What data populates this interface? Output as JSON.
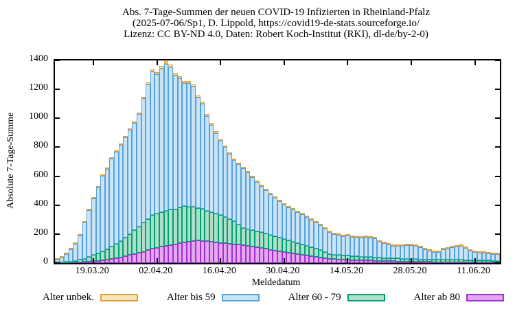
{
  "title": {
    "line1": "Abs. 7-Tage-Summen der neuen COVID-19 Infizierten in Rheinland-Pfalz",
    "line2": "(2025-07-06/Sp1, D. Lippold, https://covid19-de-stats.sourceforge.io/",
    "line3": "Lizenz: CC BY-ND 4.0, Daten: Robert Koch-Institut (RKI), dl-de/by-2-0)"
  },
  "y_axis": {
    "label": "Absolute 7-Tage-Summe",
    "ticks": [
      0,
      200,
      400,
      600,
      800,
      1000,
      1200,
      1400
    ]
  },
  "x_axis": {
    "label": "Meldedatum",
    "tick_labels": [
      "19.03.20",
      "02.04.20",
      "16.04.20",
      "30.04.20",
      "14.05.20",
      "28.05.20",
      "11.06.20"
    ]
  },
  "legend": [
    {
      "label": "Alter unbek.",
      "color": "#E2A13A",
      "fill": "#F8E4BA"
    },
    {
      "label": "Alter bis 59",
      "color": "#56A0DC",
      "fill": "#C9E4F7"
    },
    {
      "label": "Alter 60 - 79",
      "color": "#009E73",
      "fill": "#AEDFC9"
    },
    {
      "label": "Alter ab 80",
      "color": "#A02FD2",
      "fill": "#E3A8F0"
    }
  ],
  "chart_data": {
    "type": "bar",
    "stacked": true,
    "title": "Abs. 7-Tage-Summen der neuen COVID-19 Infizierten in Rheinland-Pfalz",
    "xlabel": "Meldedatum",
    "ylabel": "Absolute 7-Tage-Summe",
    "ylim": [
      0,
      1400
    ],
    "grid": false,
    "legend_position": "bottom",
    "x": [
      "11.03.20",
      "12.03.20",
      "13.03.20",
      "14.03.20",
      "15.03.20",
      "16.03.20",
      "17.03.20",
      "18.03.20",
      "19.03.20",
      "20.03.20",
      "21.03.20",
      "22.03.20",
      "23.03.20",
      "24.03.20",
      "25.03.20",
      "26.03.20",
      "27.03.20",
      "28.03.20",
      "29.03.20",
      "30.03.20",
      "31.03.20",
      "01.04.20",
      "02.04.20",
      "03.04.20",
      "04.04.20",
      "05.04.20",
      "06.04.20",
      "07.04.20",
      "08.04.20",
      "09.04.20",
      "10.04.20",
      "11.04.20",
      "12.04.20",
      "13.04.20",
      "14.04.20",
      "15.04.20",
      "16.04.20",
      "17.04.20",
      "18.04.20",
      "19.04.20",
      "20.04.20",
      "21.04.20",
      "22.04.20",
      "23.04.20",
      "24.04.20",
      "25.04.20",
      "26.04.20",
      "27.04.20",
      "28.04.20",
      "29.04.20",
      "30.04.20",
      "01.05.20",
      "02.05.20",
      "03.05.20",
      "04.05.20",
      "05.05.20",
      "06.05.20",
      "07.05.20",
      "08.05.20",
      "09.05.20",
      "10.05.20",
      "11.05.20",
      "12.05.20",
      "13.05.20",
      "14.05.20",
      "15.05.20",
      "16.05.20",
      "17.05.20",
      "18.05.20",
      "19.05.20",
      "20.05.20",
      "21.05.20",
      "22.05.20",
      "23.05.20",
      "24.05.20",
      "25.05.20",
      "26.05.20",
      "27.05.20",
      "28.05.20",
      "29.05.20",
      "30.05.20",
      "31.05.20",
      "01.06.20",
      "02.06.20",
      "03.06.20",
      "04.06.20",
      "05.06.20",
      "06.06.20",
      "07.06.20",
      "08.06.20",
      "09.06.20",
      "10.06.20",
      "11.06.20",
      "12.06.20",
      "13.06.20",
      "14.06.20",
      "15.06.20",
      "16.06.20"
    ],
    "series": [
      {
        "name": "Alter ab 80",
        "color": "#A02FD2",
        "fill": "#E3A8F0",
        "values": [
          0,
          1,
          1,
          2,
          3,
          5,
          8,
          10,
          12,
          16,
          20,
          25,
          30,
          35,
          40,
          47,
          55,
          62,
          70,
          78,
          88,
          100,
          105,
          112,
          118,
          125,
          130,
          136,
          142,
          148,
          152,
          157,
          153,
          150,
          146,
          142,
          139,
          136,
          132,
          128,
          126,
          124,
          120,
          116,
          110,
          104,
          98,
          92,
          86,
          80,
          75,
          70,
          65,
          60,
          55,
          50,
          46,
          42,
          38,
          33,
          29,
          27,
          25,
          24,
          22,
          21,
          20,
          19,
          18,
          17,
          15,
          14,
          13,
          12,
          12,
          11,
          10,
          10,
          9,
          9,
          8,
          8,
          8,
          7,
          7,
          7,
          7,
          6,
          6,
          6,
          6,
          5,
          5,
          5,
          5,
          4,
          4,
          4
        ]
      },
      {
        "name": "Alter 60 - 79",
        "color": "#009E73",
        "fill": "#AEDFC9",
        "values": [
          3,
          4,
          7,
          9,
          12,
          17,
          22,
          32,
          43,
          50,
          60,
          71,
          82,
          97,
          112,
          129,
          145,
          166,
          182,
          200,
          217,
          233,
          235,
          240,
          242,
          243,
          242,
          249,
          253,
          242,
          236,
          225,
          222,
          212,
          204,
          198,
          191,
          182,
          173,
          162,
          142,
          119,
          115,
          112,
          110,
          108,
          104,
          102,
          99,
          96,
          93,
          88,
          83,
          78,
          73,
          68,
          62,
          56,
          50,
          42,
          33,
          31,
          30,
          28,
          28,
          27,
          26,
          25,
          25,
          24,
          24,
          23,
          22,
          22,
          20,
          20,
          20,
          19,
          19,
          18,
          18,
          18,
          17,
          17,
          17,
          16,
          16,
          17,
          16,
          16,
          15,
          16,
          15,
          14,
          13,
          13,
          12,
          11
        ]
      },
      {
        "name": "Alter bis 59",
        "color": "#56A0DC",
        "fill": "#C9E4F7",
        "values": [
          21,
          34,
          53,
          82,
          116,
          170,
          248,
          323,
          389,
          458,
          521,
          556,
          611,
          639,
          664,
          694,
          719,
          740,
          776,
          859,
          930,
          991,
          964,
          992,
          1018,
          987,
          926,
          890,
          847,
          852,
          830,
          764,
          726,
          655,
          605,
          559,
          515,
          482,
          448,
          420,
          414,
          411,
          390,
          365,
          340,
          320,
          302,
          280,
          267,
          252,
          237,
          227,
          220,
          213,
          208,
          200,
          193,
          184,
          171,
          162,
          153,
          143,
          138,
          133,
          138,
          133,
          130,
          134,
          137,
          135,
          131,
          111,
          103,
          92,
          87,
          86,
          91,
          93,
          95,
          90,
          83,
          68,
          59,
          53,
          51,
          71,
          79,
          85,
          94,
          96,
          83,
          66,
          54,
          52,
          51,
          50,
          48,
          46
        ]
      },
      {
        "name": "Alter unbek.",
        "color": "#E2A13A",
        "fill": "#F8E4BA",
        "values": [
          1,
          1,
          1,
          2,
          2,
          3,
          4,
          5,
          5,
          6,
          7,
          8,
          9,
          9,
          10,
          10,
          11,
          12,
          12,
          13,
          15,
          16,
          16,
          16,
          17,
          16,
          16,
          15,
          15,
          15,
          15,
          14,
          13,
          12,
          12,
          11,
          10,
          10,
          9,
          9,
          8,
          8,
          8,
          7,
          7,
          6,
          6,
          6,
          5,
          5,
          5,
          5,
          4,
          4,
          4,
          4,
          4,
          3,
          3,
          3,
          3,
          2,
          2,
          2,
          2,
          2,
          2,
          2,
          2,
          2,
          2,
          2,
          2,
          2,
          2,
          1,
          1,
          1,
          2,
          2,
          1,
          1,
          1,
          1,
          1,
          1,
          1,
          1,
          2,
          2,
          2,
          1,
          1,
          1,
          1,
          1,
          1,
          1
        ]
      }
    ]
  }
}
